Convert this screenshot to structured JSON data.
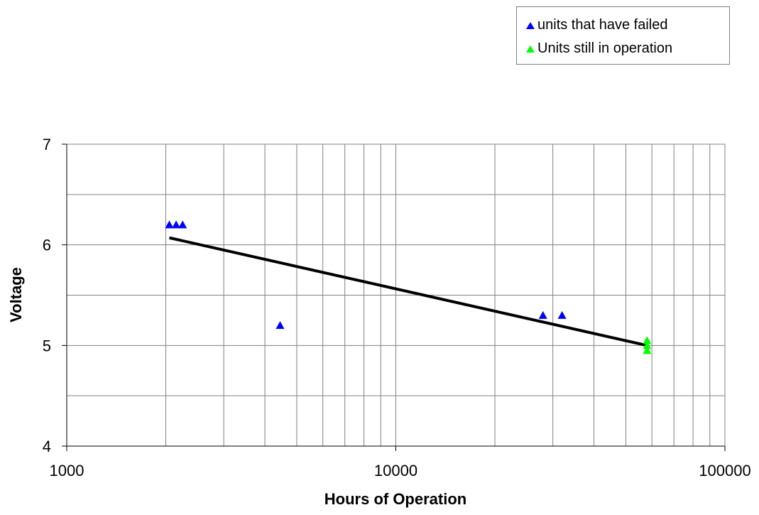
{
  "chart_data": {
    "type": "scatter",
    "xlabel": "Hours of Operation",
    "ylabel": "Voltage",
    "xscale": "log",
    "xlim": [
      1000,
      100000
    ],
    "ylim": [
      4,
      7
    ],
    "x_ticks": [
      "1000",
      "10000",
      "100000"
    ],
    "y_ticks": [
      "4",
      "5",
      "6",
      "7"
    ],
    "grid": true,
    "legend_position": "top-right",
    "series": [
      {
        "name": "units that have failed",
        "color": "#0000ff",
        "marker": "triangle",
        "points": [
          {
            "x": 2050,
            "y": 6.2
          },
          {
            "x": 2150,
            "y": 6.2
          },
          {
            "x": 2250,
            "y": 6.2
          },
          {
            "x": 4450,
            "y": 5.2
          },
          {
            "x": 28000,
            "y": 5.3
          },
          {
            "x": 32000,
            "y": 5.3
          }
        ]
      },
      {
        "name": "Units still in operation",
        "color": "#00ff00",
        "marker": "triangle",
        "points": [
          {
            "x": 58000,
            "y": 5.05
          },
          {
            "x": 58000,
            "y": 5.0
          },
          {
            "x": 58000,
            "y": 4.95
          }
        ]
      }
    ],
    "trendline": {
      "color": "#000000",
      "points": [
        {
          "x": 2050,
          "y": 6.07
        },
        {
          "x": 58000,
          "y": 5.0
        }
      ]
    }
  }
}
